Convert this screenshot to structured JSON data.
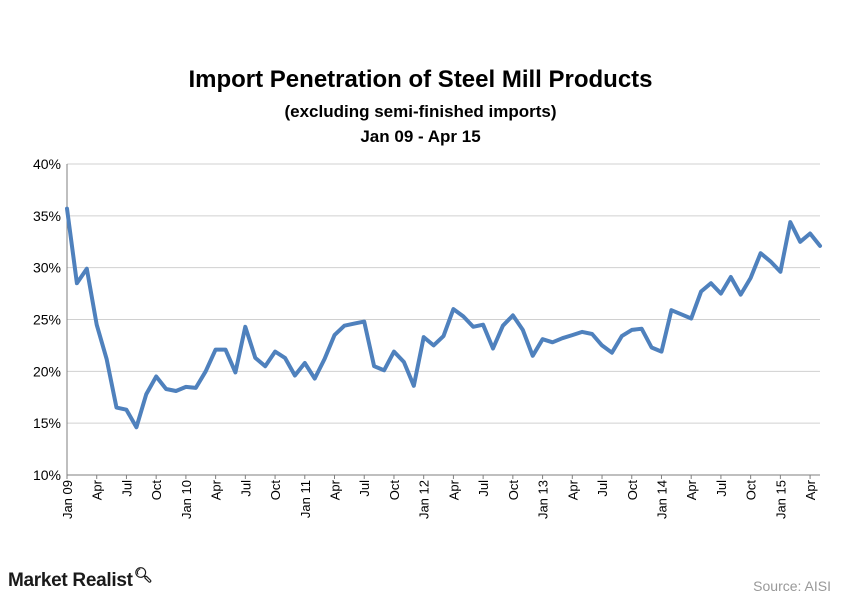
{
  "chart_data": {
    "type": "line",
    "title": "Import Penetration of Steel Mill Products",
    "subtitle": "(excluding semi-finished imports)",
    "subtitle2": "Jan 09 - Apr 15",
    "ylim": [
      0.1,
      0.4
    ],
    "y_ticks": [
      0.1,
      0.15,
      0.2,
      0.25,
      0.3,
      0.35,
      0.4
    ],
    "y_tick_labels": [
      "10%",
      "15%",
      "20%",
      "25%",
      "30%",
      "35%",
      "40%"
    ],
    "x_tick_labels": [
      "Jan 09",
      "Apr",
      "Jul",
      "Oct",
      "Jan 10",
      "Apr",
      "Jul",
      "Oct",
      "Jan 11",
      "Apr",
      "Jul",
      "Oct",
      "Jan 12",
      "Apr",
      "Jul",
      "Oct",
      "Jan 13",
      "Apr",
      "Jul",
      "Oct",
      "Jan 14",
      "Apr",
      "Jul",
      "Oct",
      "Jan 15",
      "Apr"
    ],
    "grid": true,
    "series": [
      {
        "color": "#4f81bd",
        "values": [
          0.357,
          0.285,
          0.299,
          0.245,
          0.212,
          0.165,
          0.163,
          0.146,
          0.178,
          0.195,
          0.183,
          0.181,
          0.185,
          0.184,
          0.2,
          0.221,
          0.221,
          0.199,
          0.243,
          0.213,
          0.205,
          0.219,
          0.213,
          0.196,
          0.208,
          0.193,
          0.212,
          0.235,
          0.244,
          0.246,
          0.248,
          0.205,
          0.201,
          0.219,
          0.209,
          0.186,
          0.233,
          0.225,
          0.234,
          0.26,
          0.253,
          0.243,
          0.245,
          0.222,
          0.244,
          0.254,
          0.24,
          0.215,
          0.231,
          0.228,
          0.232,
          0.235,
          0.238,
          0.236,
          0.225,
          0.218,
          0.234,
          0.24,
          0.241,
          0.223,
          0.219,
          0.259,
          0.255,
          0.251,
          0.277,
          0.285,
          0.275,
          0.291,
          0.274,
          0.29,
          0.314,
          0.306,
          0.296,
          0.344,
          0.325,
          0.333,
          0.321
        ]
      }
    ]
  },
  "footer": {
    "brand": "Market Realist",
    "source": "Source:  AISI"
  }
}
